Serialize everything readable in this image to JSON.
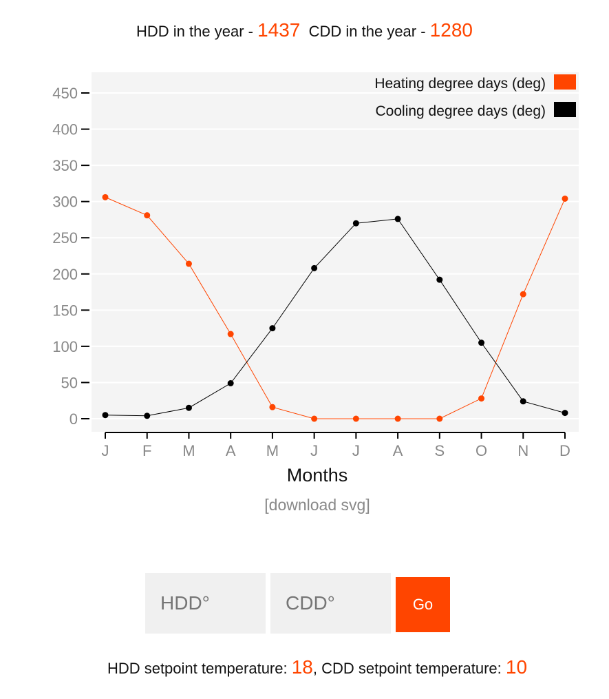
{
  "header": {
    "hdd_label": "HDD in the year - ",
    "hdd_total": "1437",
    "cdd_label": "CDD in the year - ",
    "cdd_total": "1280"
  },
  "chart_data": {
    "type": "line",
    "categories": [
      "J",
      "F",
      "M",
      "A",
      "M",
      "J",
      "J",
      "A",
      "S",
      "O",
      "N",
      "D"
    ],
    "xlabel": "Months",
    "ylabel": "",
    "ylim": [
      0,
      450
    ],
    "yticks": [
      0,
      50,
      100,
      150,
      200,
      250,
      300,
      350,
      400,
      450
    ],
    "grid": true,
    "legend": "top-right",
    "series": [
      {
        "name": "Heating degree days (deg)",
        "color": "#ff4500",
        "values": [
          306,
          281,
          214,
          117,
          16,
          0,
          0,
          0,
          0,
          28,
          172,
          304
        ]
      },
      {
        "name": "Cooling degree days (deg)",
        "color": "#000000",
        "values": [
          5,
          4,
          15,
          49,
          125,
          208,
          270,
          276,
          192,
          105,
          24,
          8
        ]
      }
    ]
  },
  "download_label": "[download svg]",
  "form": {
    "hdd_placeholder": "HDD°",
    "cdd_placeholder": "CDD°",
    "go_label": "Go"
  },
  "footer": {
    "hdd_label": "HDD setpoint temperature: ",
    "hdd_value": "18",
    "sep": ", ",
    "cdd_label": "CDD setpoint temperature: ",
    "cdd_value": "10"
  }
}
